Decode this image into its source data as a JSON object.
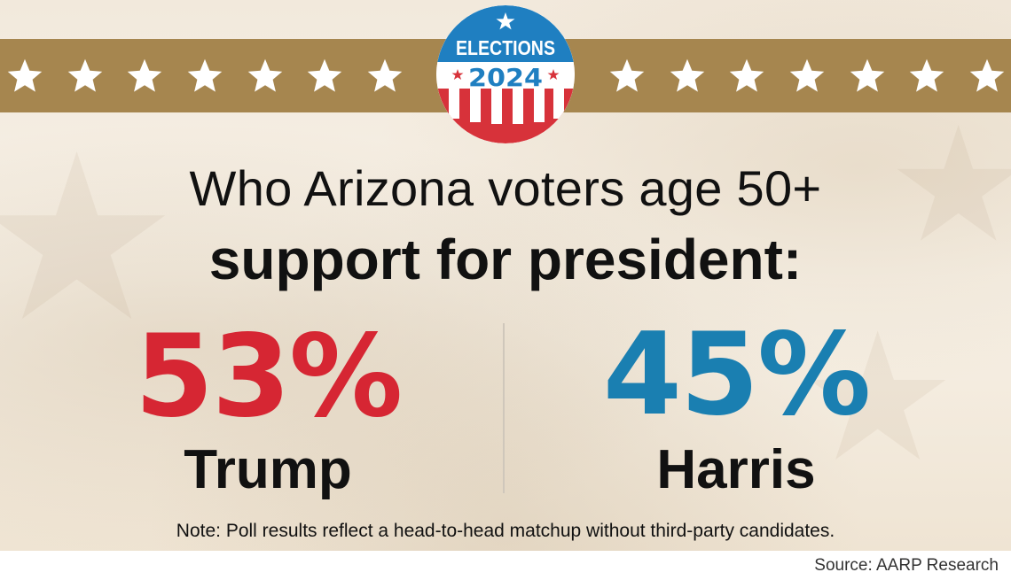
{
  "badge": {
    "label_top": "ELECTIONS",
    "label_year": "2024",
    "colors": {
      "blue": "#1f7fc1",
      "red": "#d7323a",
      "white": "#ffffff"
    }
  },
  "band": {
    "color": "#a6864f",
    "star_icon": "star-icon",
    "stars_per_side": 7
  },
  "headline": {
    "line1": "Who Arizona voters age 50+",
    "line2": "support for president:"
  },
  "results": [
    {
      "candidate": "Trump",
      "percent_label": "53%",
      "percent": 53,
      "color": "#d62633"
    },
    {
      "candidate": "Harris",
      "percent_label": "45%",
      "percent": 45,
      "color": "#1a7fb1"
    }
  ],
  "note": "Note: Poll results reflect a head-to-head matchup without third-party candidates.",
  "source": "Source: AARP Research"
}
